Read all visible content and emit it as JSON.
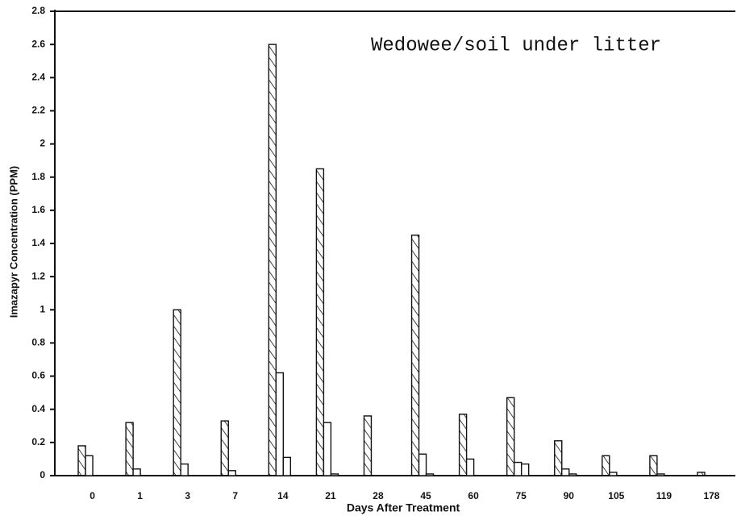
{
  "chart_data": {
    "type": "bar",
    "annotation": "Wedowee/soil under litter",
    "xlabel": "Days After Treatment",
    "ylabel": "Imazapyr Concentration (PPM)",
    "categories": [
      "0",
      "1",
      "3",
      "7",
      "14",
      "21",
      "28",
      "45",
      "60",
      "75",
      "90",
      "105",
      "119",
      "178"
    ],
    "series": [
      {
        "color": "hatched",
        "values": [
          0.18,
          0.32,
          1.0,
          0.33,
          2.6,
          1.85,
          0.36,
          1.45,
          0.37,
          0.47,
          0.21,
          0.12,
          0.12,
          0.02
        ]
      },
      {
        "color": "plain",
        "values": [
          0.12,
          0.04,
          0.07,
          0.03,
          0.62,
          0.32,
          0,
          0.13,
          0.1,
          0.08,
          0.04,
          0.02,
          0.01,
          0
        ]
      },
      {
        "color": "plain",
        "values": [
          0,
          0,
          0,
          0,
          0.11,
          0.01,
          0,
          0.01,
          0,
          0.07,
          0.01,
          0,
          0,
          0
        ]
      }
    ],
    "ylim": [
      0,
      2.8
    ],
    "yticks": [
      0,
      0.2,
      0.4,
      0.6,
      0.8,
      1,
      1.2,
      1.4,
      1.6,
      1.8,
      2,
      2.2,
      2.4,
      2.6,
      2.8
    ]
  }
}
